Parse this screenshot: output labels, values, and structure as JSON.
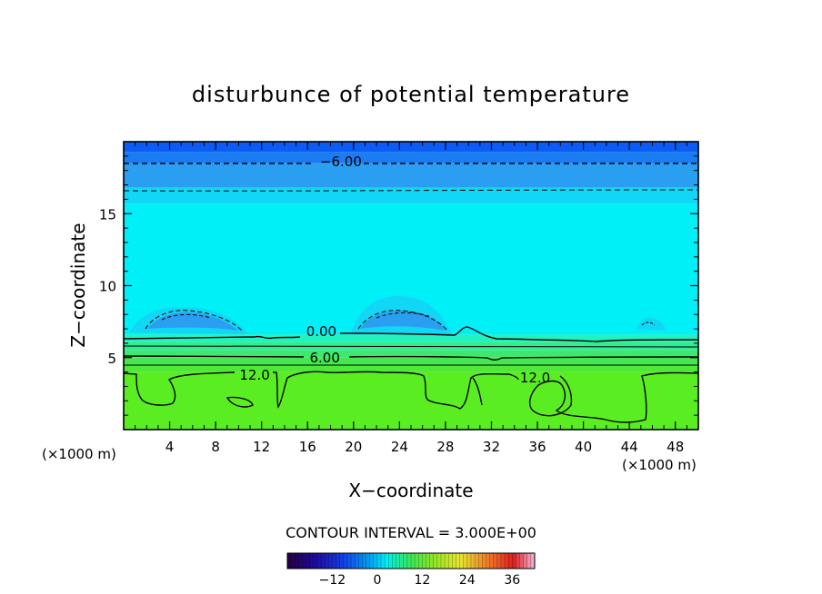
{
  "chart_data": {
    "type": "heatmap",
    "title": "disturbunce of potential temperature",
    "xlabel": "X−coordinate",
    "ylabel": "Z−coordinate",
    "x_unit_left": "(×1000 m)",
    "x_unit_right": "(×1000 m)",
    "xlim": [
      0,
      50
    ],
    "ylim": [
      0,
      20
    ],
    "x_ticks": [
      4,
      8,
      12,
      16,
      20,
      24,
      28,
      32,
      36,
      40,
      44,
      48
    ],
    "y_ticks": [
      5,
      10,
      15
    ],
    "contour_interval_text": "CONTOUR INTERVAL = 3.000E+00",
    "contour_labels": [
      {
        "text": "−6.00",
        "x": 18.9,
        "z": 18.6
      },
      {
        "text": "0.00",
        "x": 17.2,
        "z": 6.8
      },
      {
        "text": "6.00",
        "x": 17.5,
        "z": 5.0
      },
      {
        "text": "12.0",
        "x": 11.4,
        "z": 3.8
      },
      {
        "text": "12.0",
        "x": 35.8,
        "z": 3.6
      }
    ],
    "layers": [
      {
        "z0": 19.3,
        "z1": 20.0,
        "color": "#0a5cf5"
      },
      {
        "z0": 18.5,
        "z1": 19.3,
        "color": "#1a7cf2"
      },
      {
        "z0": 16.8,
        "z1": 18.5,
        "color": "#2a9ef0"
      },
      {
        "z0": 15.7,
        "z1": 16.8,
        "color": "#12d6f5"
      },
      {
        "z0": 6.6,
        "z1": 15.7,
        "color": "#00f0f8"
      },
      {
        "z0": 6.1,
        "z1": 6.6,
        "color": "#22f2c0"
      },
      {
        "z0": 5.5,
        "z1": 6.1,
        "color": "#30ee90"
      },
      {
        "z0": 5.0,
        "z1": 5.5,
        "color": "#3ee870"
      },
      {
        "z0": 4.5,
        "z1": 5.0,
        "color": "#44e652"
      },
      {
        "z0": 4.0,
        "z1": 4.5,
        "color": "#50e838"
      },
      {
        "z0": 0.0,
        "z1": 4.0,
        "color": "#5aee22"
      }
    ],
    "colorbar": {
      "min": -24,
      "max": 42,
      "ticks": [
        -12,
        0,
        12,
        24,
        36
      ]
    }
  }
}
